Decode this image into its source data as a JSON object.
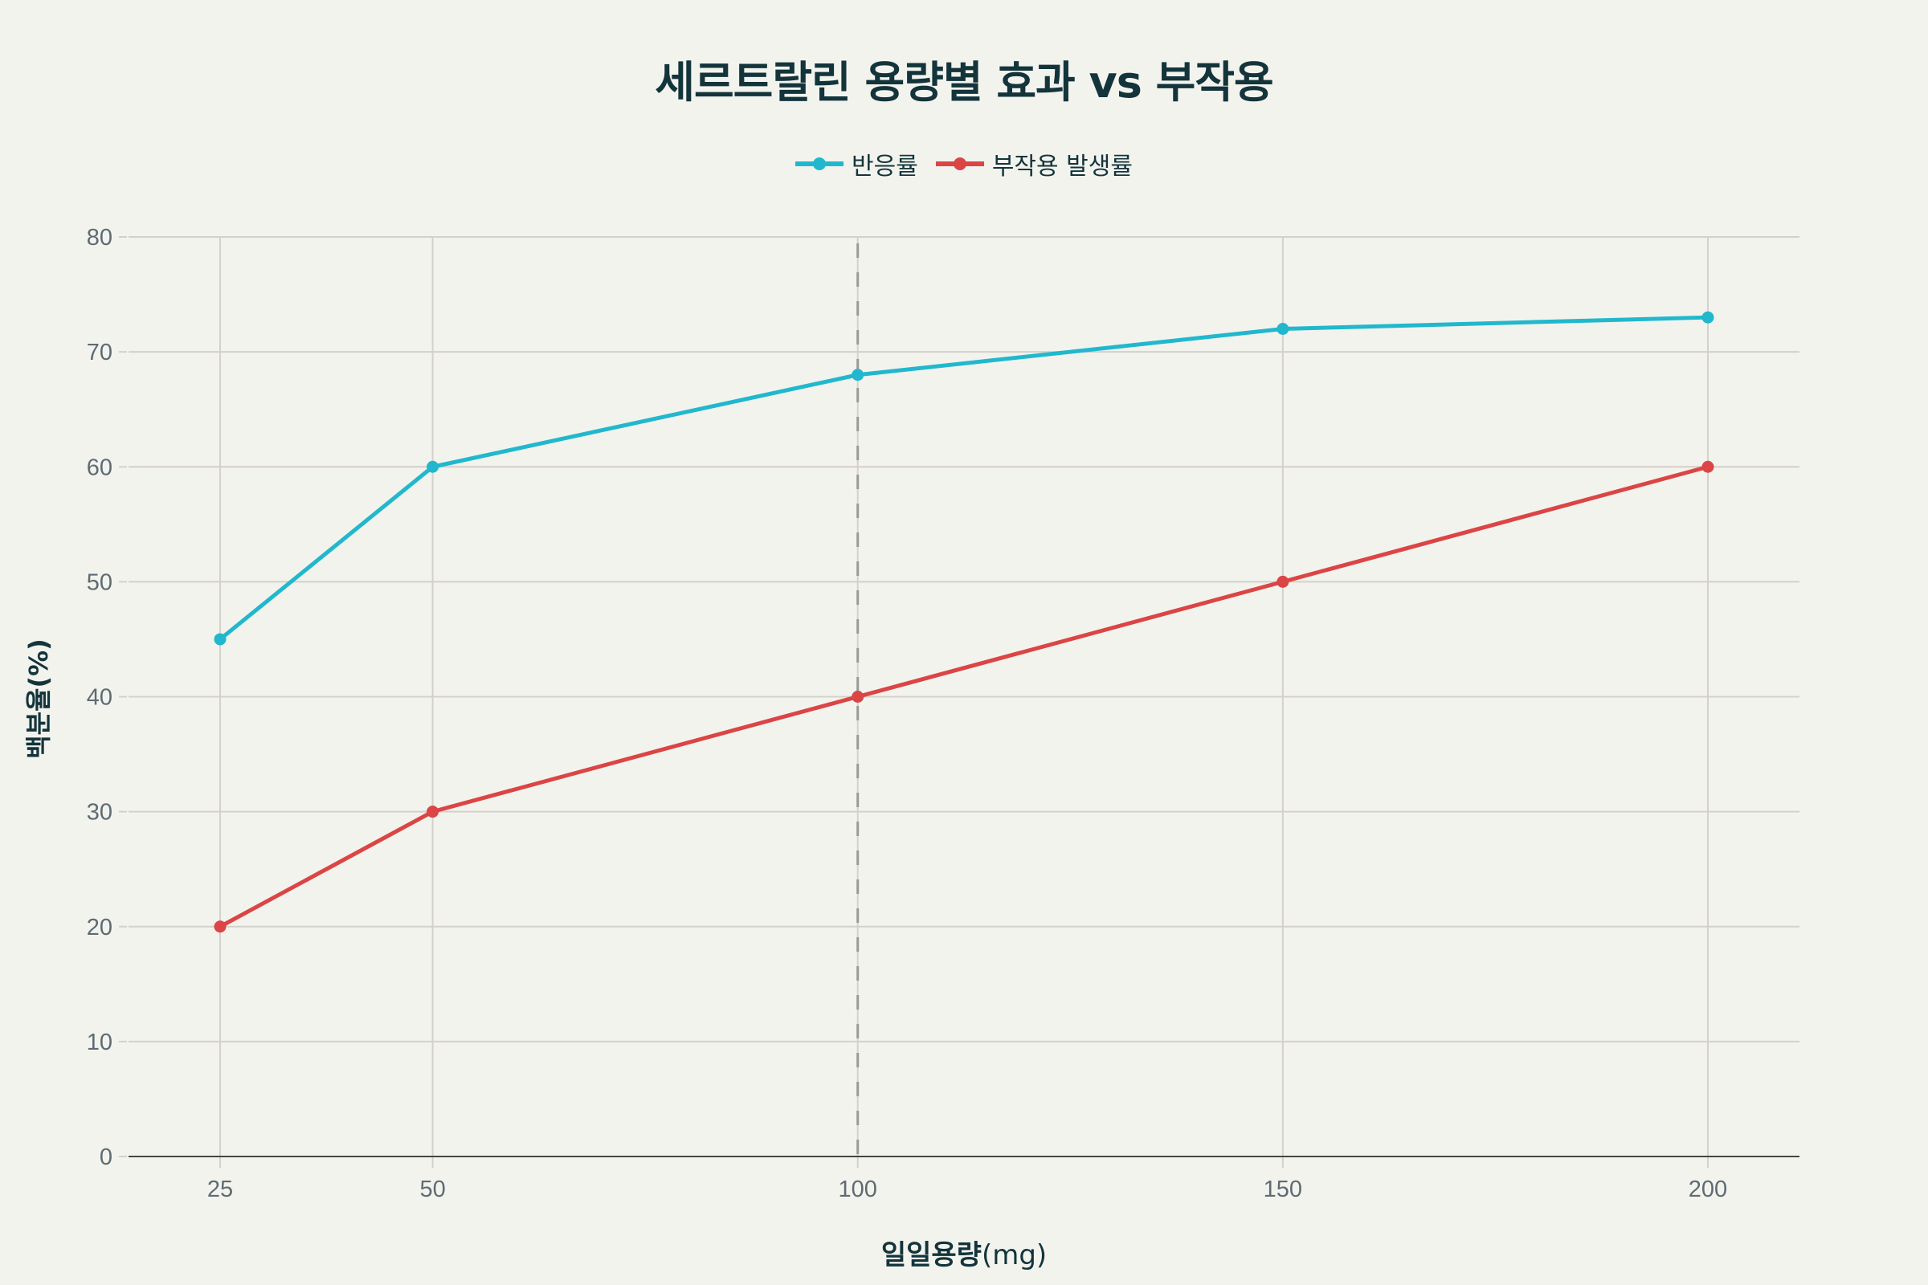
{
  "title": "세르트랄린 용량별 효과 vs 부작용",
  "legend": {
    "items": [
      {
        "label": "반응률",
        "color": "#21B8CD"
      },
      {
        "label": "부작용 발생률",
        "color": "#DB4545"
      }
    ]
  },
  "axes": {
    "x_title_bold": "일일용량",
    "x_title_unit": "(mg)",
    "y_title": "백분율(%)"
  },
  "colors": {
    "background": "#F3F3EE",
    "grid": "#D4D0CB",
    "axis_line": "#444444",
    "reference_line": "#999999",
    "text": "#13343B",
    "tick_text": "#5E6B73"
  },
  "chart_data": {
    "type": "line",
    "title": "세르트랄린 용량별 효과 vs 부작용",
    "xlabel": "일일용량(mg)",
    "ylabel": "백분율(%)",
    "x": [
      25,
      50,
      100,
      150,
      200
    ],
    "series": [
      {
        "name": "반응률",
        "color": "#21B8CD",
        "values": [
          45,
          60,
          68,
          72,
          73
        ]
      },
      {
        "name": "부작용 발생률",
        "color": "#DB4545",
        "values": [
          20,
          30,
          40,
          50,
          60
        ]
      }
    ],
    "xlim": [
      18,
      210
    ],
    "ylim": [
      0,
      80
    ],
    "x_ticks": [
      25,
      50,
      100,
      150,
      200
    ],
    "y_ticks": [
      0,
      10,
      20,
      30,
      40,
      50,
      60,
      70,
      80
    ],
    "grid": true,
    "legend_position": "top-center",
    "annotations": [
      {
        "type": "vertical-dashed-line",
        "x": 100
      }
    ]
  }
}
